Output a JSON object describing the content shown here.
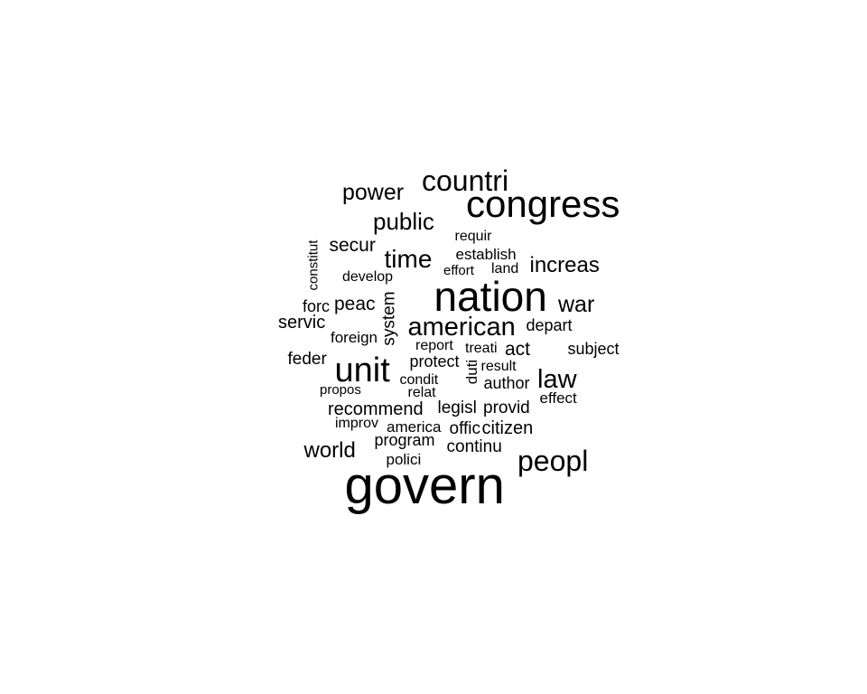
{
  "word_cloud": {
    "text_color": "#000000",
    "background_color": "#ffffff",
    "words": [
      {
        "text": "govern",
        "weight": 1.0
      },
      {
        "text": "nation",
        "weight": 0.84
      },
      {
        "text": "congress",
        "weight": 0.74
      },
      {
        "text": "unit",
        "weight": 0.66
      },
      {
        "text": "peopl",
        "weight": 0.58
      },
      {
        "text": "countri",
        "weight": 0.57
      },
      {
        "text": "american",
        "weight": 0.52
      },
      {
        "text": "law",
        "weight": 0.52
      },
      {
        "text": "time",
        "weight": 0.5
      },
      {
        "text": "public",
        "weight": 0.47
      },
      {
        "text": "war",
        "weight": 0.45
      },
      {
        "text": "power",
        "weight": 0.44
      },
      {
        "text": "world",
        "weight": 0.43
      },
      {
        "text": "increas",
        "weight": 0.43
      },
      {
        "text": "secur",
        "weight": 0.37
      },
      {
        "text": "peac",
        "weight": 0.37
      },
      {
        "text": "recommend",
        "weight": 0.36
      },
      {
        "text": "act",
        "weight": 0.38
      },
      {
        "text": "servic",
        "weight": 0.36
      },
      {
        "text": "citizen",
        "weight": 0.36
      },
      {
        "text": "system",
        "weight": 0.35
      },
      {
        "text": "feder",
        "weight": 0.34
      },
      {
        "text": "legisl",
        "weight": 0.35
      },
      {
        "text": "provid",
        "weight": 0.35
      },
      {
        "text": "continu",
        "weight": 0.35
      },
      {
        "text": "offic",
        "weight": 0.35
      },
      {
        "text": "subject",
        "weight": 0.33
      },
      {
        "text": "depart",
        "weight": 0.33
      },
      {
        "text": "author",
        "weight": 0.33
      },
      {
        "text": "protect",
        "weight": 0.33
      },
      {
        "text": "program",
        "weight": 0.32
      },
      {
        "text": "forc",
        "weight": 0.32
      },
      {
        "text": "effect",
        "weight": 0.31
      },
      {
        "text": "america",
        "weight": 0.31
      },
      {
        "text": "foreign",
        "weight": 0.31
      },
      {
        "text": "requir",
        "weight": 0.29
      },
      {
        "text": "establish",
        "weight": 0.3
      },
      {
        "text": "polici",
        "weight": 0.3
      },
      {
        "text": "duti",
        "weight": 0.3
      },
      {
        "text": "constitut",
        "weight": 0.28
      },
      {
        "text": "develop",
        "weight": 0.28
      },
      {
        "text": "condit",
        "weight": 0.28
      },
      {
        "text": "treati",
        "weight": 0.28
      },
      {
        "text": "result",
        "weight": 0.28
      },
      {
        "text": "report",
        "weight": 0.28
      },
      {
        "text": "improv",
        "weight": 0.28
      },
      {
        "text": "land",
        "weight": 0.27
      },
      {
        "text": "effort",
        "weight": 0.27
      },
      {
        "text": "relat",
        "weight": 0.27
      },
      {
        "text": "propos",
        "weight": 0.27
      }
    ]
  }
}
